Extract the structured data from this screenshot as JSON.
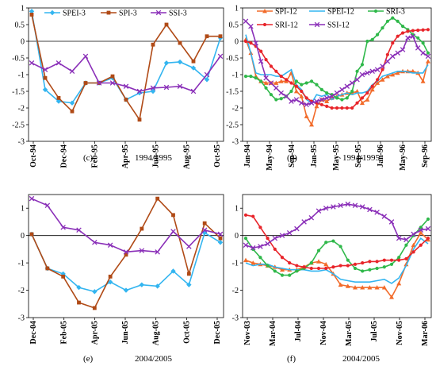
{
  "chart_data": [
    {
      "type": "line",
      "panel_letter": "(c)",
      "caption": "1994/1995",
      "ylim": [
        -3,
        1
      ],
      "yticks": [
        1,
        0.5,
        0,
        -0.5,
        -1,
        -1.5,
        -2,
        -2.5,
        -3
      ],
      "x_tick_labels": [
        "Oct-94",
        "Dec-94",
        "Feb-95",
        "Apr-95",
        "Jun-95",
        "Aug-95",
        "Oct-95"
      ],
      "legend": "top",
      "grid": false,
      "series": [
        {
          "name": "SPEI-3",
          "color": "#33b5f0",
          "marker": "diamond",
          "values": [
            0.9,
            -1.45,
            -1.8,
            -1.85,
            -1.25,
            -1.25,
            -1.1,
            -1.75,
            -1.55,
            -1.5,
            -0.65,
            -0.62,
            -0.8,
            -1.15,
            0.1
          ]
        },
        {
          "name": "SPI-3",
          "color": "#b04a16",
          "marker": "square",
          "values": [
            0.8,
            -1.1,
            -1.7,
            -2.1,
            -1.25,
            -1.25,
            -1.05,
            -1.75,
            -2.35,
            -0.1,
            0.5,
            -0.05,
            -0.6,
            0.15,
            0.15
          ]
        },
        {
          "name": "SSI-3",
          "color": "#8a2fb8",
          "marker": "cross",
          "values": [
            -0.65,
            -0.85,
            -0.65,
            -0.9,
            -0.45,
            -1.25,
            -1.25,
            -1.35,
            -1.5,
            -1.4,
            -1.38,
            -1.35,
            -1.5,
            -1.0,
            -0.45
          ]
        }
      ]
    },
    {
      "type": "line",
      "panel_letter": "(d)",
      "caption": "1994/1995",
      "ylim": [
        -3,
        1
      ],
      "yticks": [
        1,
        0.5,
        0,
        -0.5,
        -1,
        -1.5,
        -2,
        -2.5,
        -3
      ],
      "x_tick_labels": [
        "Jan-94",
        "May-94",
        "Sep-94",
        "Jan-95",
        "May-95",
        "Sep-95",
        "Jan-96",
        "May-96",
        "Sep-96"
      ],
      "legend": "top",
      "grid": false,
      "series": [
        {
          "name": "SPI-12",
          "color": "#f26b2a",
          "marker": "triangle",
          "values": [
            0.05,
            -0.35,
            -1.05,
            -1.2,
            -1.25,
            -1.25,
            -1.25,
            -1.2,
            -1.2,
            -0.95,
            -1.5,
            -1.65,
            -2.25,
            -2.5,
            -1.95,
            -1.75,
            -1.8,
            -1.7,
            -1.65,
            -1.6,
            -1.55,
            -1.55,
            -1.5,
            -1.85,
            -1.75,
            -1.45,
            -1.25,
            -1.15,
            -1.05,
            -1.0,
            -0.95,
            -0.9,
            -0.9,
            -0.9,
            -0.95,
            -1.2,
            -0.6
          ]
        },
        {
          "name": "SPEI-12",
          "color": "#33b5f0",
          "marker": "none",
          "values": [
            0.2,
            -0.35,
            -0.95,
            -1.0,
            -1.0,
            -1.0,
            -1.05,
            -1.05,
            -0.95,
            -0.85,
            -1.3,
            -1.45,
            -1.75,
            -1.85,
            -1.6,
            -1.65,
            -1.6,
            -1.75,
            -1.65,
            -1.6,
            -1.55,
            -1.6,
            -1.55,
            -1.55,
            -1.5,
            -1.3,
            -1.2,
            -1.05,
            -1.0,
            -0.95,
            -0.9,
            -0.9,
            -0.92,
            -0.95,
            -0.95,
            -0.95,
            -0.7
          ]
        },
        {
          "name": "SRI-3",
          "color": "#2fb84a",
          "marker": "dot",
          "values": [
            -1.05,
            -1.05,
            -1.1,
            -1.2,
            -1.4,
            -1.6,
            -1.75,
            -1.72,
            -1.65,
            -1.5,
            -1.2,
            -1.3,
            -1.25,
            -1.2,
            -1.3,
            -1.45,
            -1.55,
            -1.6,
            -1.7,
            -1.75,
            -1.7,
            -1.5,
            -0.9,
            -0.7,
            0.0,
            0.05,
            0.2,
            0.4,
            0.6,
            0.7,
            0.6,
            0.45,
            0.35,
            0.2,
            0.1,
            -0.05,
            -0.35
          ]
        },
        {
          "name": "SRI-12",
          "color": "#e8242a",
          "marker": "dot",
          "values": [
            0.0,
            -0.05,
            -0.15,
            -0.3,
            -0.55,
            -0.75,
            -0.9,
            -1.05,
            -1.15,
            -1.25,
            -1.35,
            -1.5,
            -1.7,
            -1.8,
            -1.85,
            -1.9,
            -1.95,
            -2.0,
            -2.0,
            -2.0,
            -2.0,
            -2.0,
            -1.85,
            -1.7,
            -1.55,
            -1.35,
            -1.15,
            -0.85,
            -0.4,
            -0.05,
            0.15,
            0.25,
            0.3,
            0.32,
            0.33,
            0.34,
            0.35
          ]
        },
        {
          "name": "SSI-12",
          "color": "#8a2fb8",
          "marker": "cross",
          "values": [
            0.6,
            0.45,
            -0.05,
            -0.6,
            -1.1,
            -1.25,
            -1.4,
            -1.55,
            -1.65,
            -1.8,
            -1.75,
            -1.85,
            -1.9,
            -1.85,
            -1.8,
            -1.75,
            -1.7,
            -1.65,
            -1.55,
            -1.45,
            -1.35,
            -1.25,
            -1.15,
            -1.0,
            -0.95,
            -0.9,
            -0.85,
            -0.75,
            -0.6,
            -0.45,
            -0.35,
            -0.25,
            0.1,
            0.15,
            -0.2,
            -0.35,
            -0.45
          ]
        }
      ]
    },
    {
      "type": "line",
      "panel_letter": "(e)",
      "caption": "2004/2005",
      "ylim": [
        -3,
        1.5
      ],
      "yticks": [
        1,
        0,
        -1,
        -2,
        -3
      ],
      "x_tick_labels": [
        "Dec-04",
        "Feb-05",
        "Apr-05",
        "Jun-05",
        "Aug-05",
        "Oct-05",
        "Dec-05"
      ],
      "legend": "none",
      "grid": false,
      "series": [
        {
          "name": "SPEI-3",
          "color": "#33b5f0",
          "marker": "diamond",
          "values": [
            0.05,
            -1.2,
            -1.4,
            -1.9,
            -2.05,
            -1.7,
            -2.0,
            -1.8,
            -1.85,
            -1.3,
            -1.8,
            0.1,
            -0.25
          ]
        },
        {
          "name": "SPI-3",
          "color": "#b04a16",
          "marker": "square",
          "values": [
            0.05,
            -1.2,
            -1.5,
            -2.45,
            -2.65,
            -1.5,
            -0.7,
            0.25,
            1.35,
            0.75,
            -1.4,
            0.45,
            -0.1
          ]
        },
        {
          "name": "SSI-3",
          "color": "#8a2fb8",
          "marker": "cross",
          "values": [
            1.35,
            1.1,
            0.3,
            0.2,
            -0.25,
            -0.35,
            -0.6,
            -0.55,
            -0.6,
            0.15,
            -0.4,
            0.2,
            0.05
          ]
        }
      ]
    },
    {
      "type": "line",
      "panel_letter": "(f)",
      "caption": "2004/2005",
      "ylim": [
        -3,
        1.5
      ],
      "yticks": [
        1,
        0,
        -1,
        -2,
        -3
      ],
      "x_tick_labels": [
        "Nov-03",
        "Mar-04",
        "Jul-04",
        "Nov-04",
        "Mar-05",
        "Jul-05",
        "Nov-05",
        "Mar-06"
      ],
      "legend": "none",
      "grid": false,
      "series": [
        {
          "name": "SPI-12",
          "color": "#f26b2a",
          "marker": "triangle",
          "values": [
            -0.9,
            -1.0,
            -1.05,
            -1.1,
            -1.15,
            -1.25,
            -1.25,
            -1.25,
            -1.15,
            -1.0,
            -0.95,
            -1.05,
            -1.4,
            -1.8,
            -1.85,
            -1.9,
            -1.9,
            -1.9,
            -1.9,
            -1.9,
            -2.25,
            -1.75,
            -1.05,
            -0.35,
            0.1,
            -0.15
          ]
        },
        {
          "name": "SPEI-12",
          "color": "#33b5f0",
          "marker": "none",
          "values": [
            -1.0,
            -1.1,
            -1.05,
            -1.05,
            -1.15,
            -1.2,
            -1.25,
            -1.25,
            -1.25,
            -1.3,
            -1.3,
            -1.25,
            -1.4,
            -1.6,
            -1.65,
            -1.7,
            -1.7,
            -1.7,
            -1.65,
            -1.6,
            -1.75,
            -1.55,
            -1.1,
            -0.5,
            -0.1,
            -0.3
          ]
        },
        {
          "name": "SRI-3",
          "color": "#2fb84a",
          "marker": "dot",
          "values": [
            -0.1,
            -0.5,
            -0.8,
            -1.1,
            -1.3,
            -1.45,
            -1.45,
            -1.3,
            -1.2,
            -1.0,
            -0.55,
            -0.25,
            -0.2,
            -0.4,
            -0.9,
            -1.2,
            -1.3,
            -1.25,
            -1.2,
            -1.15,
            -1.05,
            -0.8,
            -0.35,
            0.0,
            0.3,
            0.6
          ]
        },
        {
          "name": "SRI-12",
          "color": "#e8242a",
          "marker": "dot",
          "values": [
            0.75,
            0.7,
            0.3,
            -0.1,
            -0.5,
            -0.8,
            -1.0,
            -1.1,
            -1.15,
            -1.2,
            -1.2,
            -1.2,
            -1.15,
            -1.1,
            -1.1,
            -1.05,
            -1.0,
            -0.95,
            -0.95,
            -0.9,
            -0.9,
            -0.9,
            -0.85,
            -0.6,
            -0.35,
            -0.1
          ]
        },
        {
          "name": "SSI-12",
          "color": "#8a2fb8",
          "marker": "cross",
          "values": [
            -0.35,
            -0.45,
            -0.4,
            -0.3,
            -0.1,
            0.0,
            0.1,
            0.25,
            0.5,
            0.65,
            0.9,
            1.0,
            1.05,
            1.1,
            1.15,
            1.1,
            1.05,
            0.95,
            0.85,
            0.7,
            0.5,
            -0.1,
            -0.15,
            0.05,
            0.2,
            0.25
          ]
        }
      ]
    }
  ]
}
